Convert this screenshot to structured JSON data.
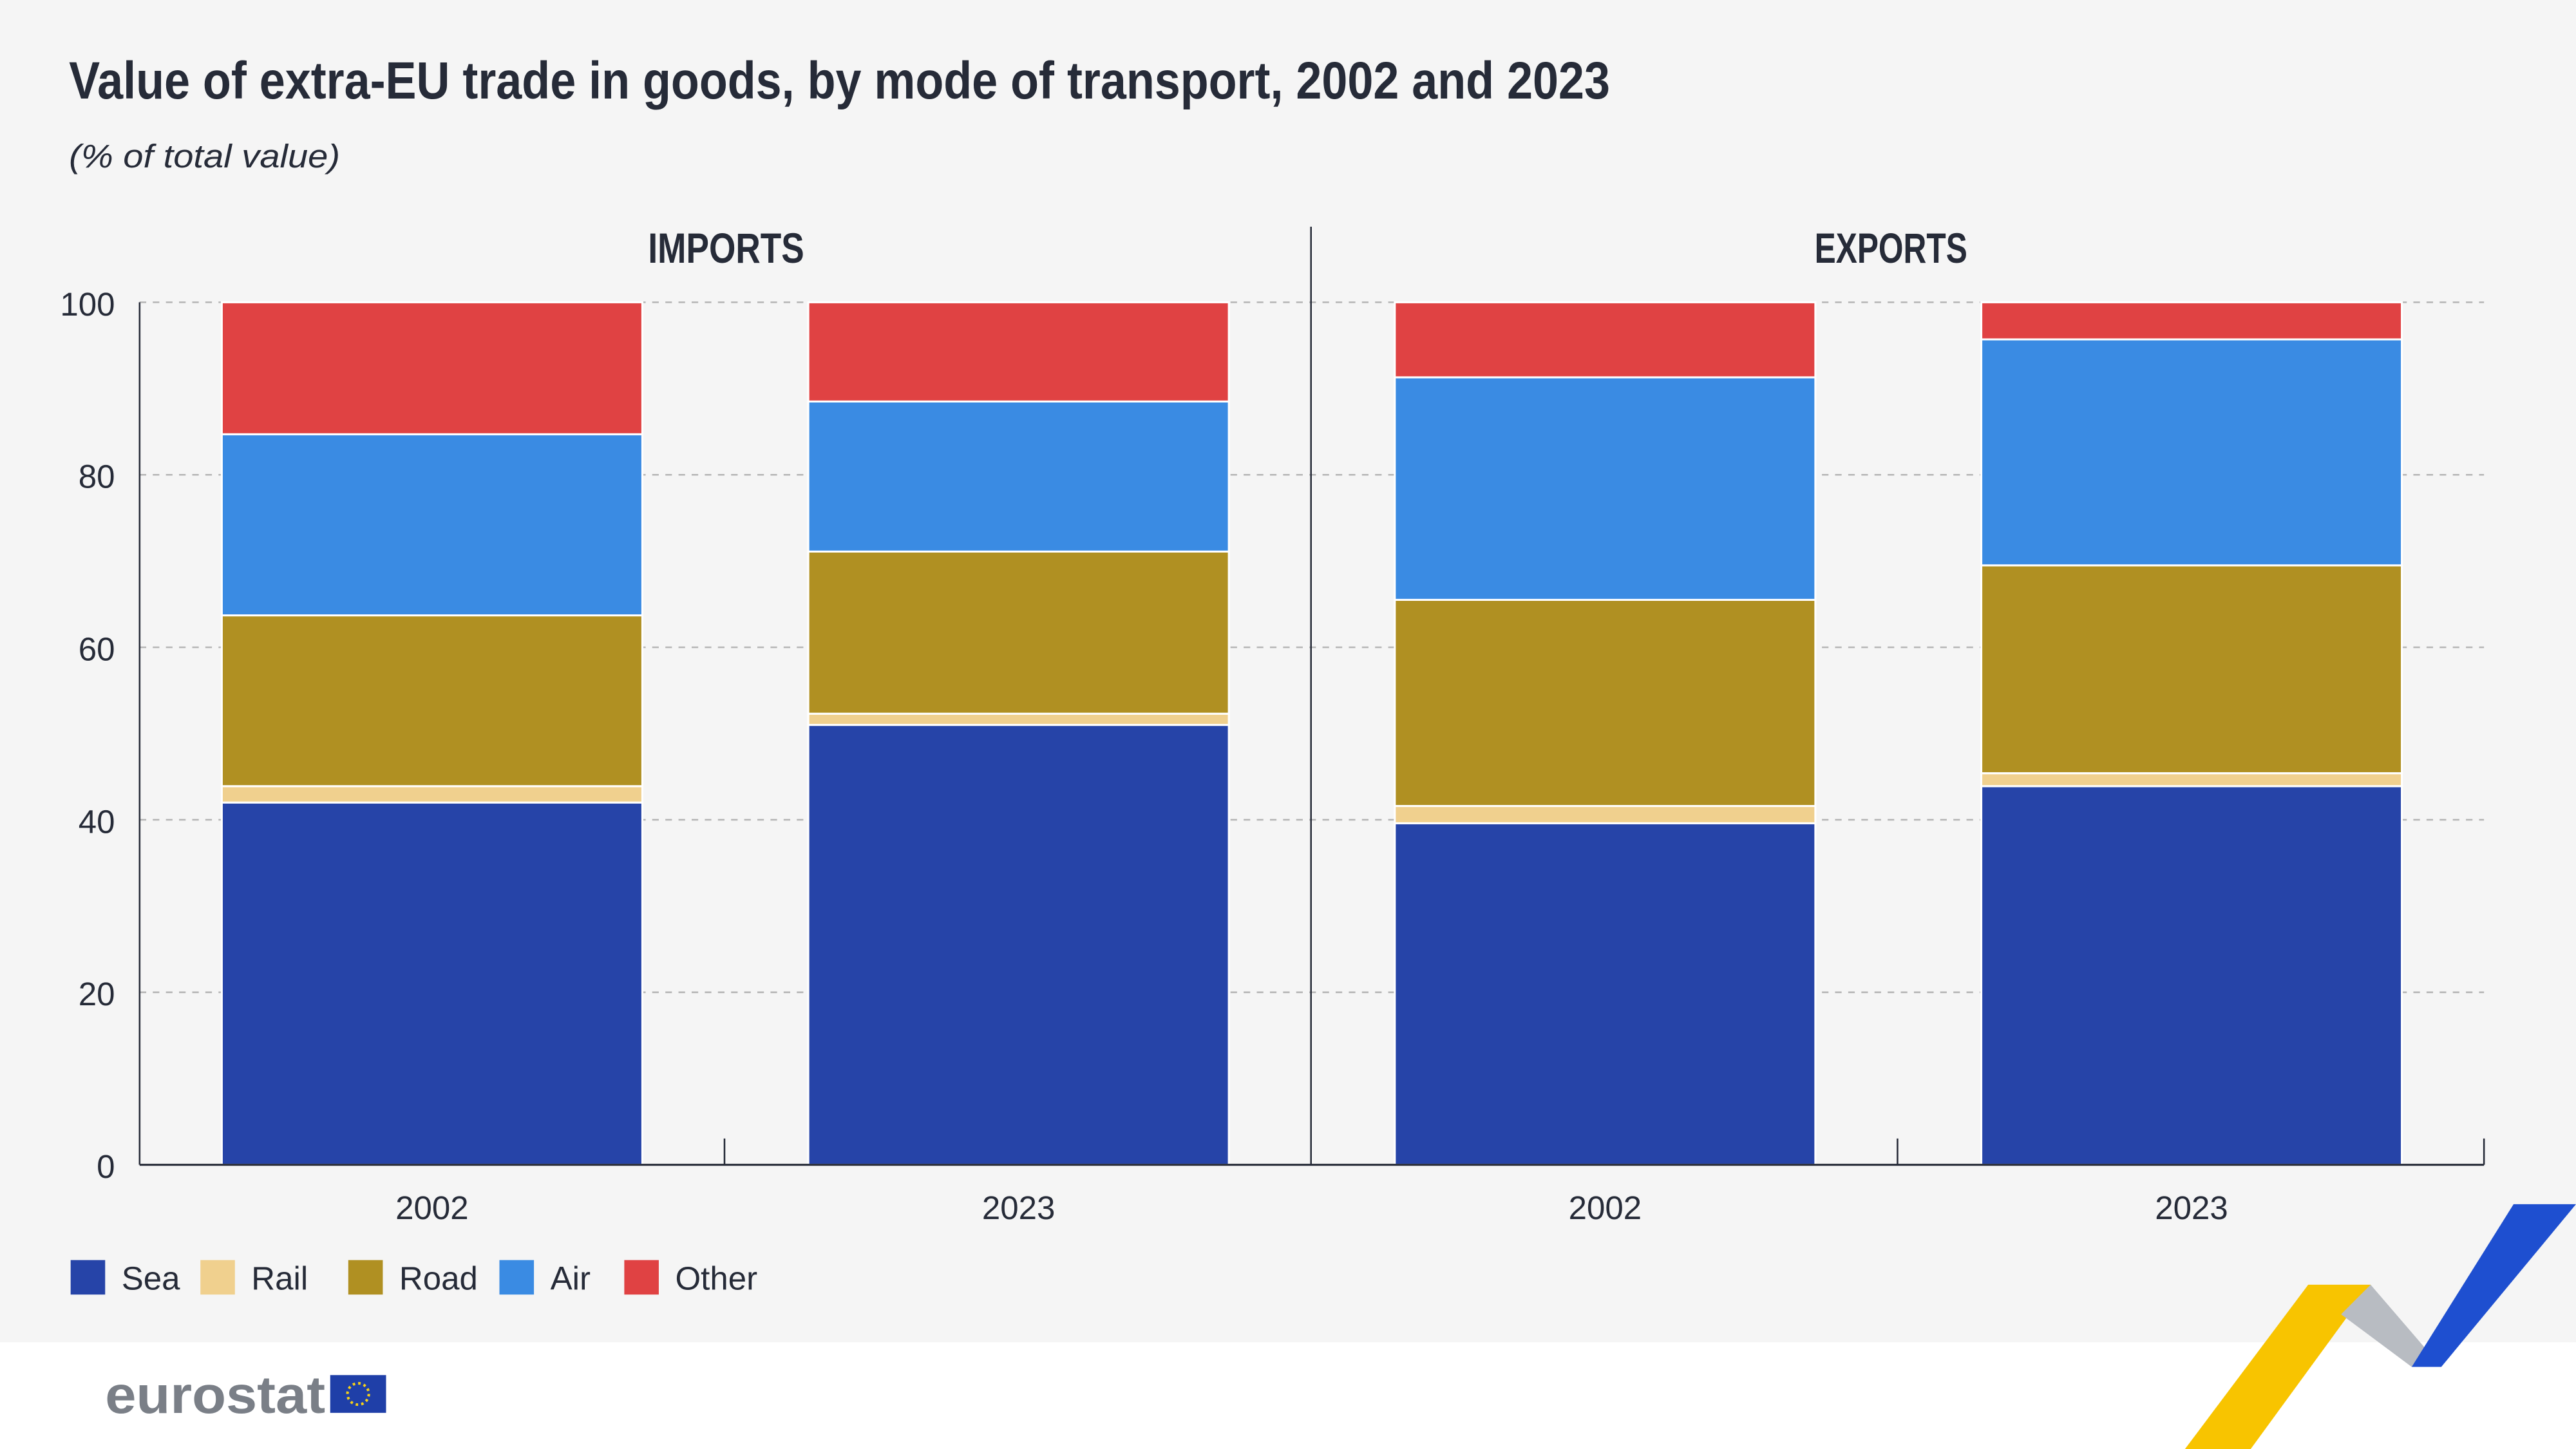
{
  "chart_data": {
    "type": "bar",
    "stacked": true,
    "title": "Value of extra-EU trade in goods, by mode of transport, 2002 and 2023",
    "subtitle": "(% of total value)",
    "ylim": [
      0,
      100
    ],
    "yticks": [
      "0",
      "20",
      "40",
      "60",
      "80",
      "100"
    ],
    "grid": true,
    "legend_position": "bottom-left",
    "series_names": [
      "Sea",
      "Rail",
      "Road",
      "Air",
      "Other"
    ],
    "colors": {
      "Sea": "#2644a8",
      "Rail": "#f0d08e",
      "Road": "#b09022",
      "Air": "#3a8be3",
      "Other": "#e04243"
    },
    "panels": [
      {
        "title": "IMPORTS",
        "categories": [
          "2002",
          "2023"
        ],
        "series": [
          {
            "name": "Sea",
            "values": [
              42.0,
              51.0
            ]
          },
          {
            "name": "Rail",
            "values": [
              1.9,
              1.3
            ]
          },
          {
            "name": "Road",
            "values": [
              19.8,
              18.8
            ]
          },
          {
            "name": "Air",
            "values": [
              21.0,
              17.4
            ]
          },
          {
            "name": "Other",
            "values": [
              15.3,
              11.5
            ]
          }
        ]
      },
      {
        "title": "EXPORTS",
        "categories": [
          "2002",
          "2023"
        ],
        "series": [
          {
            "name": "Sea",
            "values": [
              39.6,
              43.9
            ]
          },
          {
            "name": "Rail",
            "values": [
              2.0,
              1.5
            ]
          },
          {
            "name": "Road",
            "values": [
              23.9,
              24.1
            ]
          },
          {
            "name": "Air",
            "values": [
              25.8,
              26.2
            ]
          },
          {
            "name": "Other",
            "values": [
              8.7,
              4.3
            ]
          }
        ]
      }
    ]
  },
  "footer": {
    "logo_text": "eurostat"
  }
}
